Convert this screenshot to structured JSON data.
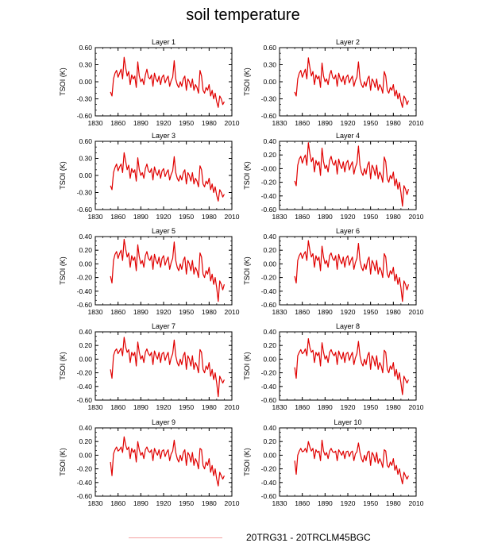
{
  "title": "soil temperature",
  "legend": {
    "label": "20TRG31 - 20TRCLM45BGC",
    "color": "#f4a0a0"
  },
  "series_color": "#e00000",
  "chart_data": [
    {
      "type": "line",
      "title": "Layer 1",
      "ylabel": "TSOI  (K)",
      "xlim": [
        1830,
        2010
      ],
      "ylim": [
        -0.6,
        0.6
      ],
      "xticks": [
        "1830",
        "1860",
        "1890",
        "1920",
        "1950",
        "1980",
        "2010"
      ],
      "yticks": [
        "-0.60",
        "-0.30",
        "0.00",
        "0.30",
        "0.60"
      ],
      "x_start": 1850,
      "x_end": 2000,
      "values": [
        -0.18,
        -0.25,
        0.05,
        0.15,
        0.2,
        0.08,
        0.15,
        0.22,
        0.05,
        0.43,
        0.25,
        0.1,
        0.18,
        -0.05,
        0.12,
        0.05,
        0.1,
        -0.1,
        0.35,
        0.1,
        0.0,
        0.05,
        -0.05,
        0.12,
        0.22,
        0.08,
        0.05,
        0.12,
        -0.08,
        0.15,
        0.05,
        0.0,
        0.1,
        -0.05,
        0.08,
        0.12,
        -0.02,
        0.05,
        0.1,
        -0.08,
        0.02,
        0.08,
        0.37,
        0.05,
        -0.05,
        -0.1,
        0.0,
        -0.08,
        0.05,
        0.1,
        -0.15,
        0.05,
        0.0,
        -0.1,
        0.05,
        -0.15,
        -0.05,
        -0.1,
        -0.2,
        0.2,
        0.1,
        -0.15,
        -0.2,
        -0.1,
        -0.15,
        -0.05,
        -0.25,
        -0.15,
        -0.3,
        -0.2,
        -0.35,
        -0.45,
        -0.25,
        -0.3,
        -0.4,
        -0.35
      ]
    },
    {
      "type": "line",
      "title": "Layer 2",
      "ylabel": "TSOI  (K)",
      "xlim": [
        1830,
        2010
      ],
      "ylim": [
        -0.6,
        0.6
      ],
      "xticks": [
        "1830",
        "1860",
        "1890",
        "1920",
        "1950",
        "1980",
        "2010"
      ],
      "yticks": [
        "-0.60",
        "-0.30",
        "0.00",
        "0.30",
        "0.60"
      ],
      "x_start": 1850,
      "x_end": 2000,
      "values": [
        -0.18,
        -0.25,
        0.05,
        0.15,
        0.2,
        0.08,
        0.15,
        0.22,
        0.05,
        0.42,
        0.25,
        0.1,
        0.18,
        -0.05,
        0.12,
        0.05,
        0.1,
        -0.1,
        0.33,
        0.1,
        0.0,
        0.05,
        -0.05,
        0.12,
        0.2,
        0.08,
        0.05,
        0.12,
        -0.08,
        0.15,
        0.05,
        0.0,
        0.1,
        -0.05,
        0.08,
        0.12,
        -0.02,
        0.05,
        0.1,
        -0.08,
        0.02,
        0.08,
        0.35,
        0.05,
        -0.05,
        -0.1,
        0.0,
        -0.08,
        0.05,
        0.1,
        -0.15,
        0.05,
        0.0,
        -0.1,
        0.05,
        -0.15,
        -0.05,
        -0.1,
        -0.2,
        0.18,
        0.1,
        -0.15,
        -0.2,
        -0.1,
        -0.15,
        -0.05,
        -0.25,
        -0.15,
        -0.3,
        -0.2,
        -0.35,
        -0.45,
        -0.25,
        -0.3,
        -0.4,
        -0.33
      ]
    },
    {
      "type": "line",
      "title": "Layer 3",
      "ylabel": "TSOI  (K)",
      "xlim": [
        1830,
        2010
      ],
      "ylim": [
        -0.6,
        0.6
      ],
      "xticks": [
        "1830",
        "1860",
        "1890",
        "1920",
        "1950",
        "1980",
        "2010"
      ],
      "yticks": [
        "-0.60",
        "-0.30",
        "0.00",
        "0.30",
        "0.60"
      ],
      "x_start": 1850,
      "x_end": 2000,
      "values": [
        -0.18,
        -0.25,
        0.05,
        0.14,
        0.2,
        0.08,
        0.15,
        0.2,
        0.05,
        0.4,
        0.25,
        0.1,
        0.18,
        -0.05,
        0.12,
        0.05,
        0.1,
        -0.1,
        0.31,
        0.1,
        0.0,
        0.05,
        -0.05,
        0.12,
        0.2,
        0.08,
        0.05,
        0.12,
        -0.08,
        0.15,
        0.05,
        0.0,
        0.1,
        -0.05,
        0.08,
        0.12,
        -0.02,
        0.05,
        0.1,
        -0.08,
        0.02,
        0.08,
        0.33,
        0.05,
        -0.05,
        -0.1,
        0.0,
        -0.08,
        0.05,
        0.1,
        -0.15,
        0.05,
        0.0,
        -0.1,
        0.05,
        -0.15,
        -0.05,
        -0.1,
        -0.2,
        0.17,
        0.1,
        -0.15,
        -0.2,
        -0.1,
        -0.15,
        -0.05,
        -0.25,
        -0.15,
        -0.3,
        -0.2,
        -0.35,
        -0.45,
        -0.25,
        -0.3,
        -0.38,
        -0.33
      ]
    },
    {
      "type": "line",
      "title": "Layer 4",
      "ylabel": "TSOI  (K)",
      "xlim": [
        1830,
        2010
      ],
      "ylim": [
        -0.6,
        0.4
      ],
      "xticks": [
        "1830",
        "1860",
        "1890",
        "1920",
        "1950",
        "1980",
        "2010"
      ],
      "yticks": [
        "-0.60",
        "-0.40",
        "-0.20",
        "-0.00",
        "0.20",
        "0.40"
      ],
      "x_start": 1850,
      "x_end": 2000,
      "values": [
        -0.18,
        -0.25,
        0.05,
        0.14,
        0.18,
        0.08,
        0.15,
        0.2,
        0.05,
        0.38,
        0.22,
        0.1,
        0.16,
        -0.05,
        0.12,
        0.05,
        0.1,
        -0.1,
        0.3,
        0.1,
        0.0,
        0.05,
        -0.05,
        0.12,
        0.18,
        0.08,
        0.05,
        0.12,
        -0.08,
        0.14,
        0.05,
        0.0,
        0.1,
        -0.05,
        0.08,
        0.12,
        -0.02,
        0.05,
        0.1,
        -0.08,
        0.02,
        0.08,
        0.33,
        0.05,
        -0.05,
        -0.1,
        0.0,
        -0.08,
        0.05,
        0.1,
        -0.15,
        0.05,
        0.0,
        -0.1,
        0.05,
        -0.15,
        -0.05,
        -0.1,
        -0.2,
        0.17,
        0.1,
        -0.15,
        -0.2,
        -0.1,
        -0.15,
        -0.05,
        -0.25,
        -0.15,
        -0.3,
        -0.2,
        -0.35,
        -0.55,
        -0.25,
        -0.3,
        -0.38,
        -0.3
      ]
    },
    {
      "type": "line",
      "title": "Layer 5",
      "ylabel": "TSOI  (K)",
      "xlim": [
        1830,
        2010
      ],
      "ylim": [
        -0.6,
        0.4
      ],
      "xticks": [
        "1830",
        "1860",
        "1890",
        "1920",
        "1950",
        "1980",
        "2010"
      ],
      "yticks": [
        "-0.60",
        "-0.40",
        "-0.20",
        "0.00",
        "0.20",
        "0.40"
      ],
      "x_start": 1850,
      "x_end": 2000,
      "values": [
        -0.18,
        -0.28,
        0.05,
        0.14,
        0.18,
        0.08,
        0.15,
        0.2,
        0.05,
        0.36,
        0.22,
        0.1,
        0.16,
        -0.05,
        0.12,
        0.05,
        0.1,
        -0.1,
        0.28,
        0.1,
        0.0,
        0.05,
        -0.05,
        0.12,
        0.18,
        0.08,
        0.05,
        0.12,
        -0.08,
        0.14,
        0.05,
        0.0,
        0.1,
        -0.05,
        0.08,
        0.12,
        -0.02,
        0.05,
        0.1,
        -0.08,
        0.02,
        0.08,
        0.32,
        0.05,
        -0.05,
        -0.1,
        0.0,
        -0.08,
        0.05,
        0.1,
        -0.15,
        0.05,
        0.0,
        -0.1,
        0.05,
        -0.15,
        -0.05,
        -0.1,
        -0.2,
        0.16,
        0.1,
        -0.15,
        -0.2,
        -0.1,
        -0.15,
        -0.05,
        -0.25,
        -0.15,
        -0.3,
        -0.2,
        -0.35,
        -0.55,
        -0.25,
        -0.3,
        -0.38,
        -0.3
      ]
    },
    {
      "type": "line",
      "title": "Layer 6",
      "ylabel": "TSOI  (K)",
      "xlim": [
        1830,
        2010
      ],
      "ylim": [
        -0.6,
        0.4
      ],
      "xticks": [
        "1830",
        "1860",
        "1890",
        "1920",
        "1950",
        "1980",
        "2010"
      ],
      "yticks": [
        "-0.60",
        "-0.40",
        "-0.20",
        "0.00",
        "0.20",
        "0.40"
      ],
      "x_start": 1850,
      "x_end": 2000,
      "values": [
        -0.18,
        -0.28,
        0.05,
        0.12,
        0.16,
        0.08,
        0.14,
        0.18,
        0.05,
        0.34,
        0.2,
        0.1,
        0.15,
        -0.05,
        0.12,
        0.05,
        0.1,
        -0.1,
        0.26,
        0.1,
        0.0,
        0.05,
        -0.05,
        0.12,
        0.16,
        0.08,
        0.05,
        0.12,
        -0.08,
        0.14,
        0.05,
        0.0,
        0.1,
        -0.05,
        0.08,
        0.12,
        -0.02,
        0.05,
        0.1,
        -0.08,
        0.02,
        0.08,
        0.3,
        0.05,
        -0.05,
        -0.1,
        0.0,
        -0.08,
        0.05,
        0.1,
        -0.15,
        0.05,
        0.0,
        -0.1,
        0.05,
        -0.15,
        -0.05,
        -0.1,
        -0.2,
        0.15,
        0.1,
        -0.15,
        -0.2,
        -0.1,
        -0.15,
        -0.05,
        -0.25,
        -0.15,
        -0.3,
        -0.2,
        -0.35,
        -0.55,
        -0.25,
        -0.3,
        -0.38,
        -0.3
      ]
    },
    {
      "type": "line",
      "title": "Layer 7",
      "ylabel": "TSOI  (K)",
      "xlim": [
        1830,
        2010
      ],
      "ylim": [
        -0.6,
        0.4
      ],
      "xticks": [
        "1830",
        "1860",
        "1890",
        "1920",
        "1950",
        "1980",
        "2010"
      ],
      "yticks": [
        "-0.60",
        "-0.40",
        "-0.20",
        "0.00",
        "0.20",
        "0.40"
      ],
      "x_start": 1850,
      "x_end": 2000,
      "values": [
        -0.15,
        -0.28,
        0.05,
        0.12,
        0.15,
        0.08,
        0.12,
        0.16,
        0.05,
        0.32,
        0.18,
        0.1,
        0.14,
        -0.05,
        0.1,
        0.05,
        0.1,
        -0.1,
        0.25,
        0.1,
        0.0,
        0.05,
        -0.05,
        0.1,
        0.15,
        0.08,
        0.05,
        0.1,
        -0.08,
        0.12,
        0.05,
        0.0,
        0.1,
        -0.05,
        0.08,
        0.1,
        -0.02,
        0.05,
        0.1,
        -0.08,
        0.02,
        0.08,
        0.28,
        0.05,
        -0.05,
        -0.1,
        0.0,
        -0.08,
        0.05,
        0.1,
        -0.15,
        0.05,
        0.0,
        -0.1,
        0.05,
        -0.15,
        -0.05,
        -0.1,
        -0.2,
        0.14,
        0.1,
        -0.15,
        -0.2,
        -0.1,
        -0.15,
        -0.05,
        -0.25,
        -0.15,
        -0.3,
        -0.2,
        -0.35,
        -0.55,
        -0.25,
        -0.3,
        -0.35,
        -0.3
      ]
    },
    {
      "type": "line",
      "title": "Layer 8",
      "ylabel": "TSOI  (K)",
      "xlim": [
        1830,
        2010
      ],
      "ylim": [
        -0.6,
        0.4
      ],
      "xticks": [
        "1830",
        "1860",
        "1890",
        "1920",
        "1950",
        "1980",
        "2010"
      ],
      "yticks": [
        "-0.60",
        "-0.40",
        "-0.20",
        "0.00",
        "0.20",
        "0.40"
      ],
      "x_start": 1850,
      "x_end": 2000,
      "values": [
        -0.12,
        -0.28,
        0.05,
        0.1,
        0.14,
        0.08,
        0.1,
        0.15,
        0.05,
        0.3,
        0.17,
        0.1,
        0.13,
        -0.05,
        0.1,
        0.05,
        0.1,
        -0.1,
        0.24,
        0.1,
        0.0,
        0.05,
        -0.05,
        0.1,
        0.14,
        0.08,
        0.05,
        0.1,
        -0.08,
        0.12,
        0.05,
        0.0,
        0.1,
        -0.05,
        0.08,
        0.1,
        -0.02,
        0.05,
        0.1,
        -0.08,
        0.02,
        0.08,
        0.26,
        0.05,
        -0.05,
        -0.1,
        0.0,
        -0.08,
        0.05,
        0.1,
        -0.15,
        0.05,
        0.0,
        -0.1,
        0.05,
        -0.15,
        -0.05,
        -0.1,
        -0.2,
        0.13,
        0.1,
        -0.15,
        -0.2,
        -0.1,
        -0.15,
        -0.05,
        -0.25,
        -0.15,
        -0.3,
        -0.2,
        -0.35,
        -0.52,
        -0.25,
        -0.3,
        -0.35,
        -0.3
      ]
    },
    {
      "type": "line",
      "title": "Layer 9",
      "ylabel": "TSOI  (K)",
      "xlim": [
        1830,
        2010
      ],
      "ylim": [
        -0.6,
        0.4
      ],
      "xticks": [
        "1830",
        "1860",
        "1890",
        "1920",
        "1950",
        "1980",
        "2010"
      ],
      "yticks": [
        "-0.60",
        "-0.40",
        "-0.20",
        "0.00",
        "0.20",
        "0.40"
      ],
      "x_start": 1850,
      "x_end": 2000,
      "values": [
        -0.1,
        -0.3,
        0.02,
        0.08,
        0.12,
        0.06,
        0.08,
        0.12,
        0.04,
        0.27,
        0.15,
        0.08,
        0.12,
        -0.05,
        0.1,
        0.04,
        0.08,
        -0.1,
        0.2,
        0.08,
        0.0,
        0.04,
        -0.05,
        0.08,
        0.12,
        0.06,
        0.04,
        0.08,
        -0.08,
        0.1,
        0.04,
        0.0,
        0.08,
        -0.05,
        0.06,
        0.08,
        -0.02,
        0.04,
        0.08,
        -0.08,
        0.02,
        0.06,
        0.22,
        0.04,
        -0.05,
        -0.1,
        0.0,
        -0.08,
        0.04,
        0.08,
        -0.15,
        0.04,
        0.0,
        -0.1,
        0.04,
        -0.15,
        -0.05,
        -0.1,
        -0.2,
        0.1,
        0.08,
        -0.15,
        -0.2,
        -0.1,
        -0.15,
        -0.05,
        -0.25,
        -0.15,
        -0.3,
        -0.2,
        -0.35,
        -0.45,
        -0.25,
        -0.3,
        -0.35,
        -0.3
      ]
    },
    {
      "type": "line",
      "title": "Layer 10",
      "ylabel": "TSOI  (K)",
      "xlim": [
        1830,
        2010
      ],
      "ylim": [
        -0.6,
        0.4
      ],
      "xticks": [
        "1830",
        "1860",
        "1890",
        "1920",
        "1950",
        "1980",
        "2010"
      ],
      "yticks": [
        "-0.60",
        "-0.40",
        "-0.20",
        "0.00",
        "0.20",
        "0.40"
      ],
      "x_start": 1850,
      "x_end": 2000,
      "values": [
        -0.08,
        -0.28,
        0.0,
        0.06,
        0.1,
        0.05,
        0.06,
        0.1,
        0.04,
        0.2,
        0.12,
        0.06,
        0.1,
        -0.05,
        0.08,
        0.04,
        0.06,
        -0.08,
        0.22,
        0.06,
        0.0,
        0.04,
        -0.05,
        0.06,
        0.1,
        0.05,
        0.04,
        0.06,
        -0.08,
        0.08,
        0.04,
        0.0,
        0.06,
        -0.05,
        0.05,
        0.06,
        -0.02,
        0.04,
        0.06,
        -0.08,
        0.02,
        0.05,
        0.18,
        0.04,
        -0.05,
        -0.1,
        0.0,
        -0.08,
        0.04,
        0.06,
        -0.15,
        0.04,
        0.0,
        -0.1,
        0.04,
        -0.12,
        -0.05,
        -0.1,
        -0.18,
        0.08,
        0.06,
        -0.15,
        -0.18,
        -0.1,
        -0.15,
        -0.05,
        -0.22,
        -0.15,
        -0.28,
        -0.2,
        -0.32,
        -0.42,
        -0.25,
        -0.3,
        -0.35,
        -0.3
      ]
    }
  ]
}
